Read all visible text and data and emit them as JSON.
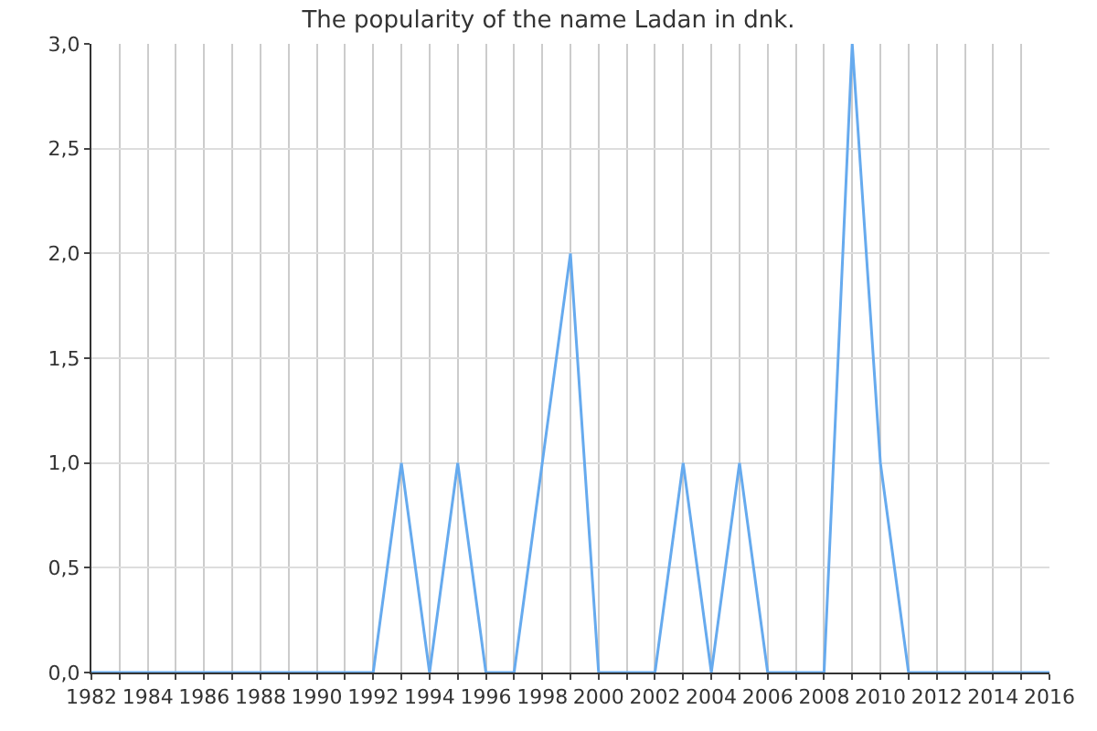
{
  "chart_data": {
    "type": "line",
    "title": "The popularity of the name Ladan in dnk.",
    "x": [
      1982,
      1983,
      1984,
      1985,
      1986,
      1987,
      1988,
      1989,
      1990,
      1991,
      1992,
      1993,
      1994,
      1995,
      1996,
      1997,
      1998,
      1999,
      2000,
      2001,
      2002,
      2003,
      2004,
      2005,
      2006,
      2007,
      2008,
      2009,
      2010,
      2011,
      2012,
      2013,
      2014,
      2015,
      2016
    ],
    "series": [
      {
        "color": "#66aaee",
        "values": [
          0,
          0,
          0,
          0,
          0,
          0,
          0,
          0,
          0,
          0,
          0,
          1,
          0,
          1,
          0,
          0,
          1,
          2,
          0,
          0,
          0,
          1,
          0,
          1,
          0,
          0,
          0,
          3,
          1,
          0,
          0,
          0,
          0,
          0,
          0
        ]
      }
    ],
    "xlim": [
      1982,
      2016
    ],
    "xticks": [
      1982,
      {
        "value": 1983,
        "label": null
      },
      1984,
      {
        "value": 1985,
        "label": null
      },
      1986,
      {
        "value": 1987,
        "label": null
      },
      1988,
      {
        "value": 1989,
        "label": null
      },
      1990,
      {
        "value": 1991,
        "label": null
      },
      1992,
      {
        "value": 1993,
        "label": null
      },
      1994,
      {
        "value": 1995,
        "label": null
      },
      1996,
      {
        "value": 1997,
        "label": null
      },
      1998,
      {
        "value": 1999,
        "label": null
      },
      2000,
      {
        "value": 2001,
        "label": null
      },
      2002,
      {
        "value": 2003,
        "label": null
      },
      2004,
      {
        "value": 2005,
        "label": null
      },
      2006,
      {
        "value": 2007,
        "label": null
      },
      2008,
      {
        "value": 2009,
        "label": null
      },
      2010,
      {
        "value": 2011,
        "label": null
      },
      2012,
      {
        "value": 2013,
        "label": null
      },
      2014,
      {
        "value": 2015,
        "label": null
      },
      2016
    ],
    "ylim": [
      0,
      3
    ],
    "yticks": [
      {
        "value": 0,
        "label": "0,0"
      },
      {
        "value": 0.5,
        "label": "0,5"
      },
      {
        "value": 1,
        "label": "1,0"
      },
      {
        "value": 1.5,
        "label": "1,5"
      },
      {
        "value": 2,
        "label": "2,0"
      },
      {
        "value": 2.5,
        "label": "2,5"
      },
      {
        "value": 3,
        "label": "3,0"
      }
    ],
    "grid": true,
    "marker": "none",
    "line_style": "solid"
  }
}
